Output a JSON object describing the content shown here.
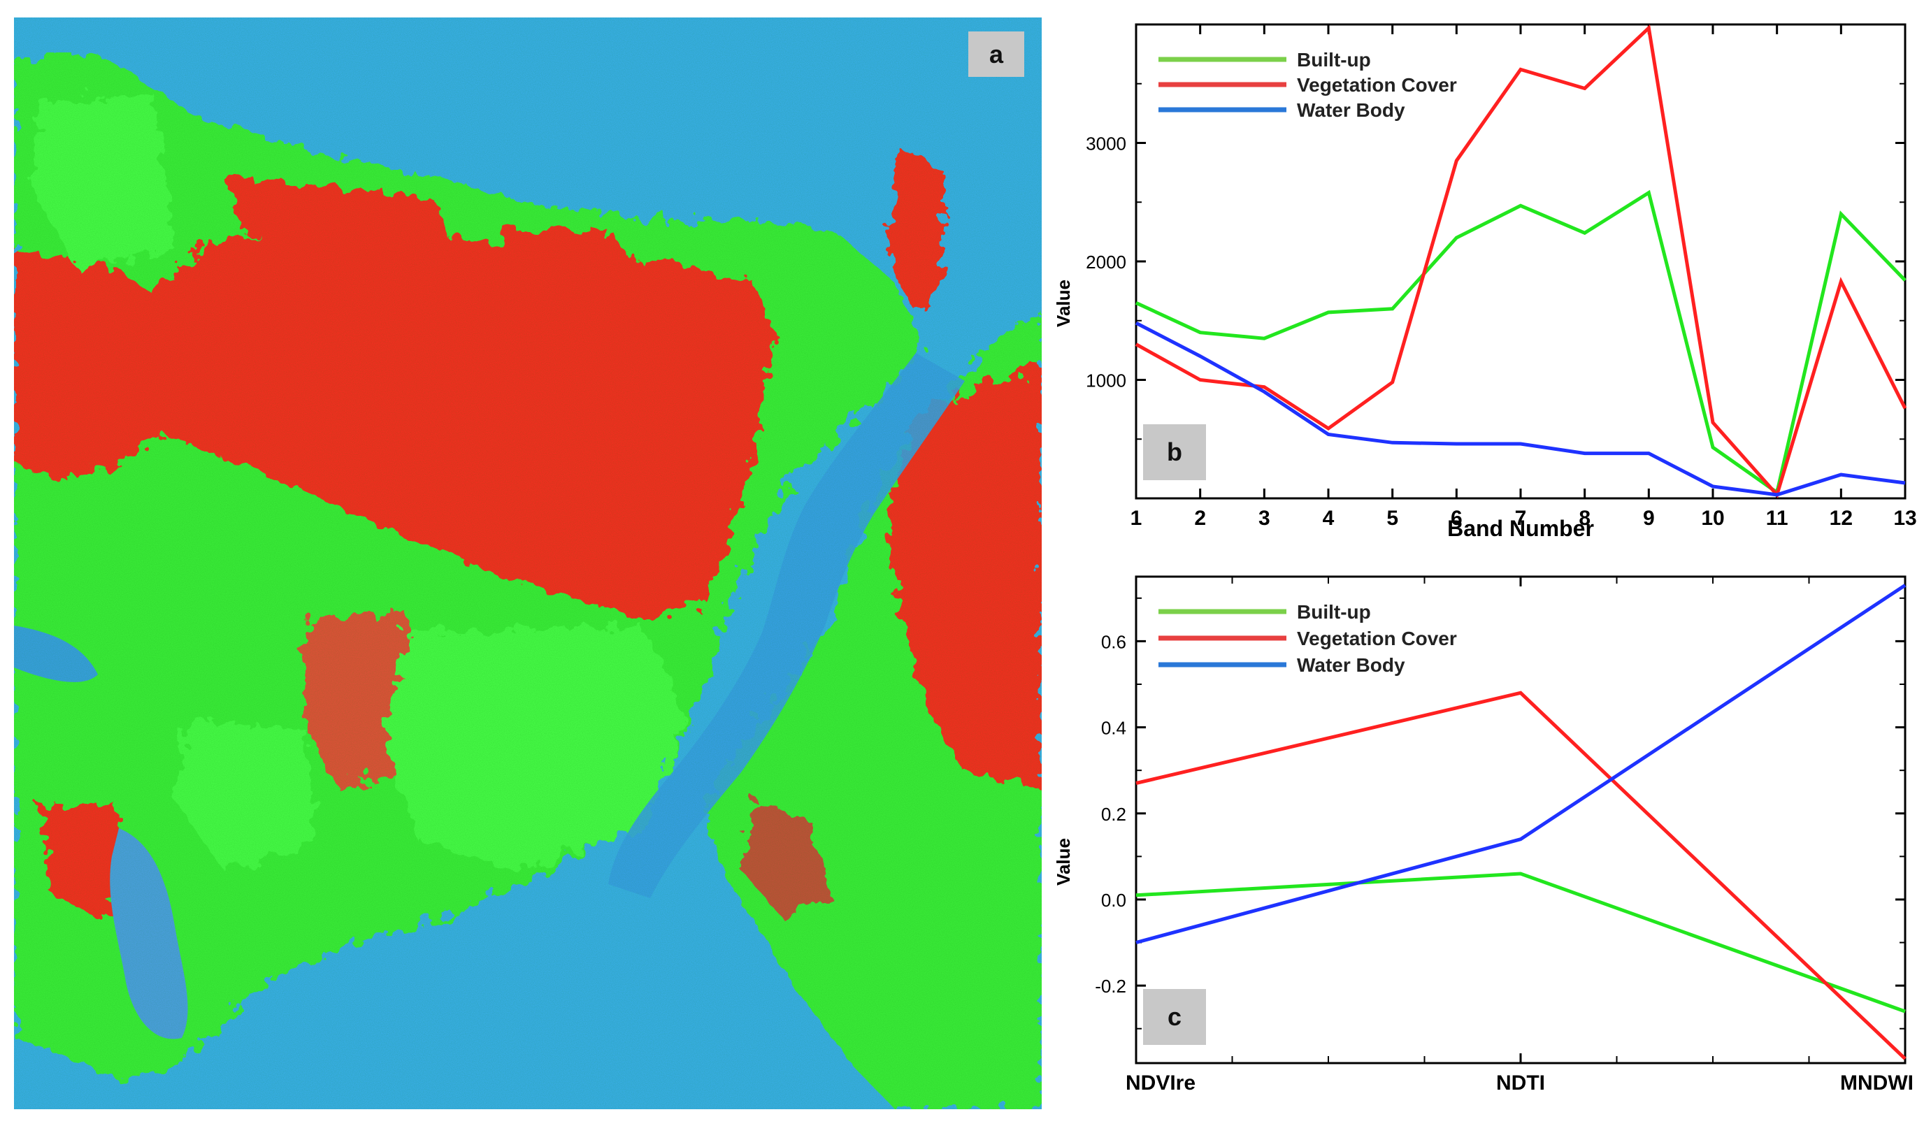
{
  "panels": {
    "a_label": "a",
    "b_label": "b",
    "c_label": "c"
  },
  "colors": {
    "builtup": "#22e61e",
    "vegetation": "#ff2020",
    "water": "#1e32ff",
    "legend_builtup": "#7bd04a",
    "legend_vegetation": "#e84040",
    "legend_water": "#2a78d8",
    "map_sea": "#2aa4ee",
    "map_red": "#ff2a24",
    "map_green": "#3ef03a"
  },
  "chart_data": [
    {
      "id": "b",
      "type": "line",
      "xlabel": "Band Number",
      "ylabel": "Value",
      "categories": [
        "1",
        "2",
        "3",
        "4",
        "5",
        "6",
        "7",
        "8",
        "9",
        "10",
        "11",
        "12",
        "13"
      ],
      "ylim": [
        0,
        4000
      ],
      "yticks": [
        1000,
        2000,
        3000
      ],
      "ytick_labels": [
        "1000",
        "2000",
        "3000"
      ],
      "legend_position": "top-left",
      "series": [
        {
          "key": "builtup",
          "name": "Built-up",
          "values": [
            1650,
            1400,
            1350,
            1570,
            1600,
            2200,
            2470,
            2240,
            2580,
            430,
            50,
            2400,
            1840
          ]
        },
        {
          "key": "vegetation",
          "name": "Vegetation Cover",
          "values": [
            1300,
            1000,
            940,
            590,
            980,
            2850,
            3620,
            3460,
            3970,
            640,
            30,
            1830,
            760
          ]
        },
        {
          "key": "water",
          "name": "Water Body",
          "values": [
            1480,
            1200,
            900,
            540,
            470,
            460,
            460,
            380,
            380,
            100,
            30,
            200,
            130
          ]
        }
      ]
    },
    {
      "id": "c",
      "type": "line",
      "xlabel": "",
      "ylabel": "Value",
      "categories": [
        "NDVIre",
        "NDTI",
        "MNDWI"
      ],
      "ylim": [
        -0.38,
        0.75
      ],
      "yticks": [
        -0.2,
        0.0,
        0.2,
        0.4,
        0.6
      ],
      "ytick_labels": [
        "-0.2",
        "0.0",
        "0.2",
        "0.4",
        "0.6"
      ],
      "legend_position": "top-left",
      "series": [
        {
          "key": "builtup",
          "name": "Built-up",
          "values": [
            0.01,
            0.06,
            -0.26
          ]
        },
        {
          "key": "vegetation",
          "name": "Vegetation Cover",
          "values": [
            0.27,
            0.48,
            -0.37
          ]
        },
        {
          "key": "water",
          "name": "Water Body",
          "values": [
            -0.1,
            0.14,
            0.73
          ]
        }
      ]
    }
  ]
}
